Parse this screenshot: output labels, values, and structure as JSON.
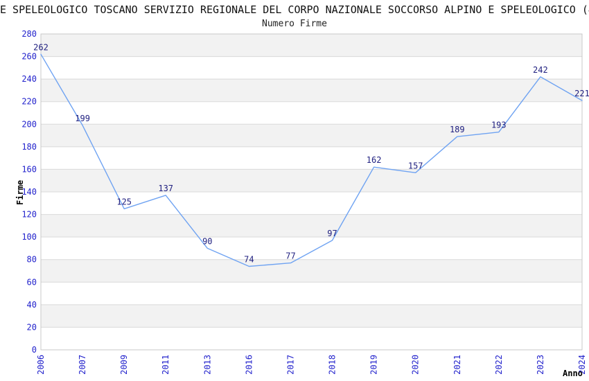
{
  "header": {
    "title": "E SPELEOLOGICO TOSCANO SERVIZIO REGIONALE DEL CORPO NAZIONALE SOCCORSO ALPINO E SPELEOLOGICO (4",
    "subtitle": "Numero Firme"
  },
  "chart_data": {
    "type": "line",
    "title": "Numero Firme",
    "xlabel": "Anno",
    "ylabel": "Firme",
    "categories": [
      "2006",
      "2007",
      "2009",
      "2011",
      "2013",
      "2016",
      "2017",
      "2018",
      "2019",
      "2020",
      "2021",
      "2022",
      "2023",
      "2024"
    ],
    "values": [
      262,
      199,
      125,
      137,
      90,
      74,
      77,
      97,
      162,
      157,
      189,
      193,
      242,
      221
    ],
    "ylim": [
      0,
      280
    ],
    "ytick_step": 20,
    "yticks": [
      0,
      20,
      40,
      60,
      80,
      100,
      120,
      140,
      160,
      180,
      200,
      220,
      240,
      260,
      280
    ],
    "grid": "horizontal-bands",
    "legend_position": "none",
    "colors": {
      "line": "#6fa3f2",
      "data_label": "#202080",
      "tick_label": "#2222cc",
      "band_gray": "#f2f2f2",
      "band_white": "#ffffff",
      "grid": "#d9d9d9",
      "border": "#c9c9c9",
      "axis_title": "#000000",
      "title": "#111111"
    }
  }
}
